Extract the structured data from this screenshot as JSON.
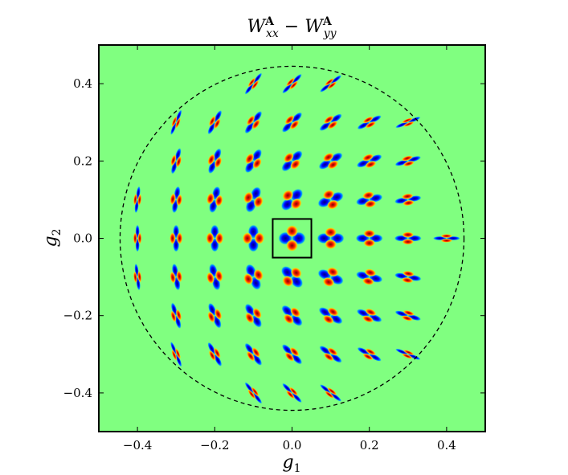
{
  "chart_data": {
    "type": "heatmap",
    "title": "W^A_xx − W^A_yy",
    "title_parts": {
      "base1": "W",
      "sup1": "A",
      "sub1": "xx",
      "minus": " − ",
      "base2": "W",
      "sup2": "A",
      "sub2": "yy"
    },
    "xlabel": "g1",
    "xlabel_parts": {
      "base": "g",
      "sub": "1"
    },
    "ylabel": "g2",
    "ylabel_parts": {
      "base": "g",
      "sub": "2"
    },
    "xlim": [
      -0.5,
      0.5
    ],
    "ylim": [
      -0.5,
      0.5
    ],
    "x_ticks": [
      -0.4,
      -0.2,
      0.0,
      0.2,
      0.4
    ],
    "y_ticks": [
      -0.4,
      -0.2,
      0.0,
      0.2,
      0.4
    ],
    "x_tick_labels": [
      "−0.4",
      "−0.2",
      "0.0",
      "0.2",
      "0.4"
    ],
    "y_tick_labels": [
      "−0.4",
      "−0.2",
      "0.0",
      "0.2",
      "0.4"
    ],
    "grid": false,
    "background_color": "#80ff80",
    "colormap": [
      "#00007f",
      "#0000ff",
      "#00a0ff",
      "#80ff80",
      "#ffd000",
      "#ff2000",
      "#7f0000"
    ],
    "boundary_circle": {
      "center": [
        0.0,
        0.0
      ],
      "radius": 0.445,
      "style": "dashed"
    },
    "highlight_box": {
      "center": [
        0.0,
        0.0
      ],
      "half_width": 0.05
    },
    "grid_points_spacing": 0.1,
    "grid_points_radius_limit": 0.44
  }
}
